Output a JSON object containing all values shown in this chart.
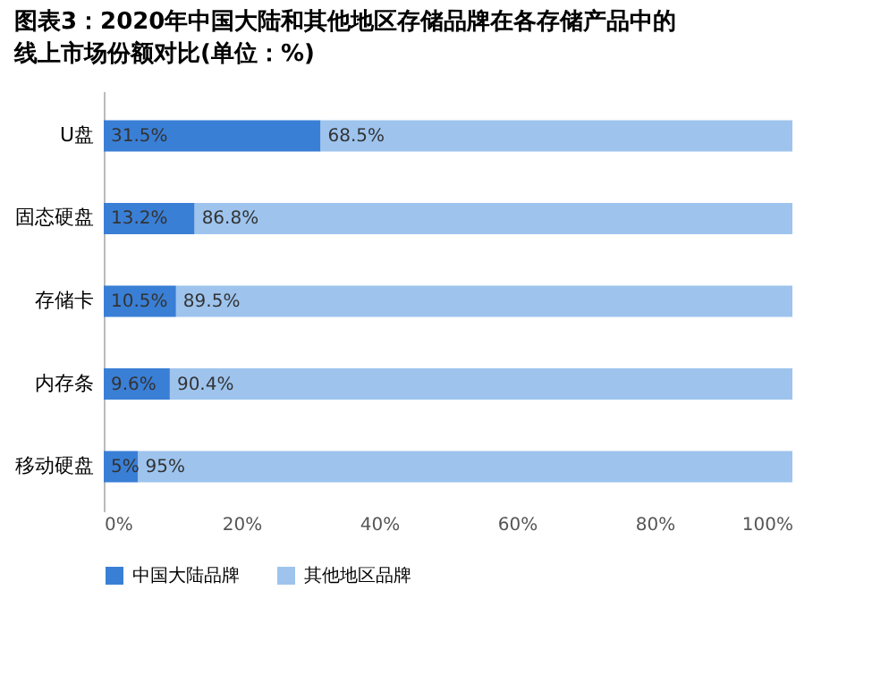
{
  "chart_data": {
    "type": "bar",
    "orientation": "horizontal",
    "stacked": true,
    "title": "图表3：2020年中国大陆和其他地区存储品牌在各存储产品中的线上市场份额对比(单位：%)",
    "categories": [
      "U盘",
      "固态硬盘",
      "存储卡",
      "内存条",
      "移动硬盘"
    ],
    "series": [
      {
        "name": "中国大陆品牌",
        "color": "#3a7fd6",
        "values": [
          31.5,
          13.2,
          10.5,
          9.6,
          5
        ],
        "value_labels": [
          "31.5%",
          "13.2%",
          "10.5%",
          "9.6%",
          "5%"
        ]
      },
      {
        "name": "其他地区品牌",
        "color": "#9ec4ee",
        "values": [
          68.5,
          86.8,
          89.5,
          90.4,
          95
        ],
        "value_labels": [
          "68.5%",
          "86.8%",
          "89.5%",
          "90.4%",
          "95%"
        ]
      }
    ],
    "xlim": [
      0,
      100
    ],
    "xticks": [
      {
        "value": 0,
        "label": "0%"
      },
      {
        "value": 20,
        "label": "20%"
      },
      {
        "value": 40,
        "label": "40%"
      },
      {
        "value": 60,
        "label": "60%"
      },
      {
        "value": 80,
        "label": "80%"
      },
      {
        "value": 100,
        "label": "100%"
      }
    ],
    "grid": false,
    "legend": "bottom"
  }
}
